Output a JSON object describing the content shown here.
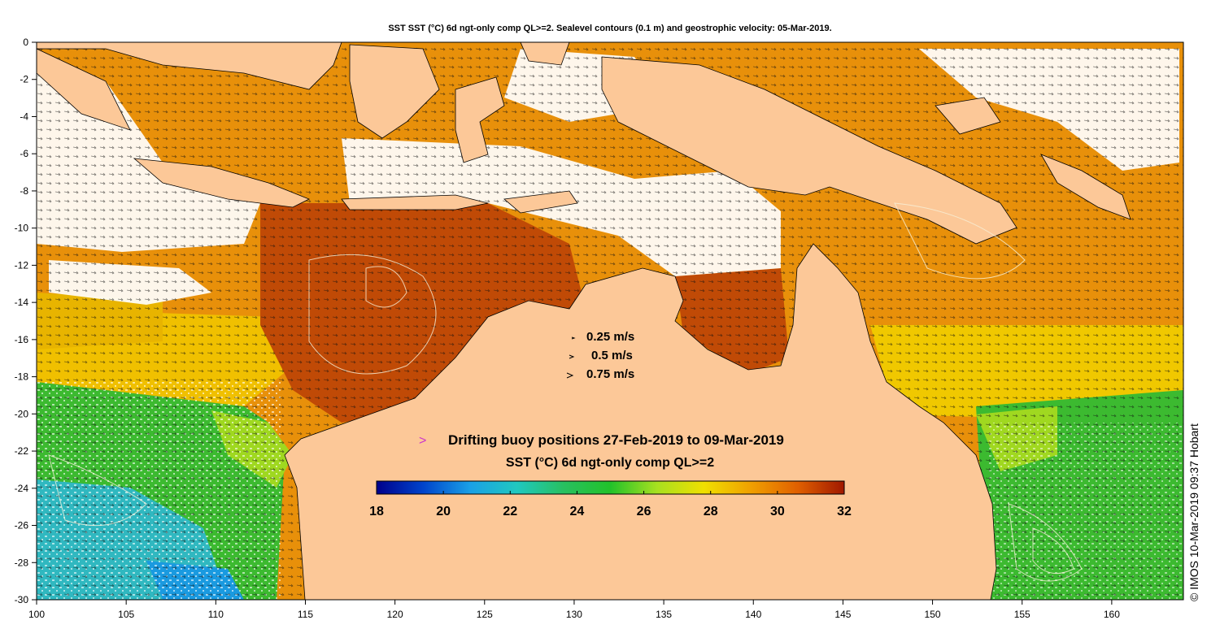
{
  "title": "SST SST (°C) 6d ngt-only comp QL>=2. Sealevel contours (0.1 m) and geostrophic velocity: 05-Mar-2019.",
  "axes": {
    "x_ticks": [
      "100",
      "105",
      "110",
      "115",
      "120",
      "125",
      "130",
      "135",
      "140",
      "145",
      "150",
      "155",
      "160"
    ],
    "y_ticks": [
      "0",
      "-2",
      "-4",
      "-6",
      "-8",
      "-10",
      "-12",
      "-14",
      "-16",
      "-18",
      "-20",
      "-22",
      "-24",
      "-26",
      "-28",
      "-30"
    ],
    "lon_range": [
      100,
      164
    ],
    "lat_range": [
      -30,
      0
    ]
  },
  "velocity_legend": {
    "items": [
      "0.25 m/s",
      "0.5 m/s",
      "0.75 m/s"
    ],
    "arrow_glyph": ">"
  },
  "buoy_legend": {
    "marker": ">",
    "label": "Drifting buoy positions 27-Feb-2019 to 09-Mar-2019",
    "marker_color": "#cc33cc"
  },
  "colorbar": {
    "title": "SST (°C) 6d ngt-only comp QL>=2",
    "ticks": [
      "18",
      "20",
      "22",
      "24",
      "26",
      "28",
      "30",
      "32"
    ],
    "range": [
      18,
      32
    ],
    "stops": [
      "#00008b",
      "#0044cc",
      "#1aa0e6",
      "#20c8c0",
      "#28c060",
      "#22c22a",
      "#a8e020",
      "#f0e000",
      "#f0a000",
      "#e06000",
      "#a01800"
    ]
  },
  "colors": {
    "land": "#fcc898",
    "warm_sea": "#e8900a",
    "hot_sea": "#c04a06",
    "mid_sea": "#f0c000",
    "cool_sea": "#3cba30",
    "cold_sea": "#30b8c0",
    "cloud": "#ffffff"
  },
  "credit": "© IMOS 10-Mar-2019 09:37 Hobart"
}
